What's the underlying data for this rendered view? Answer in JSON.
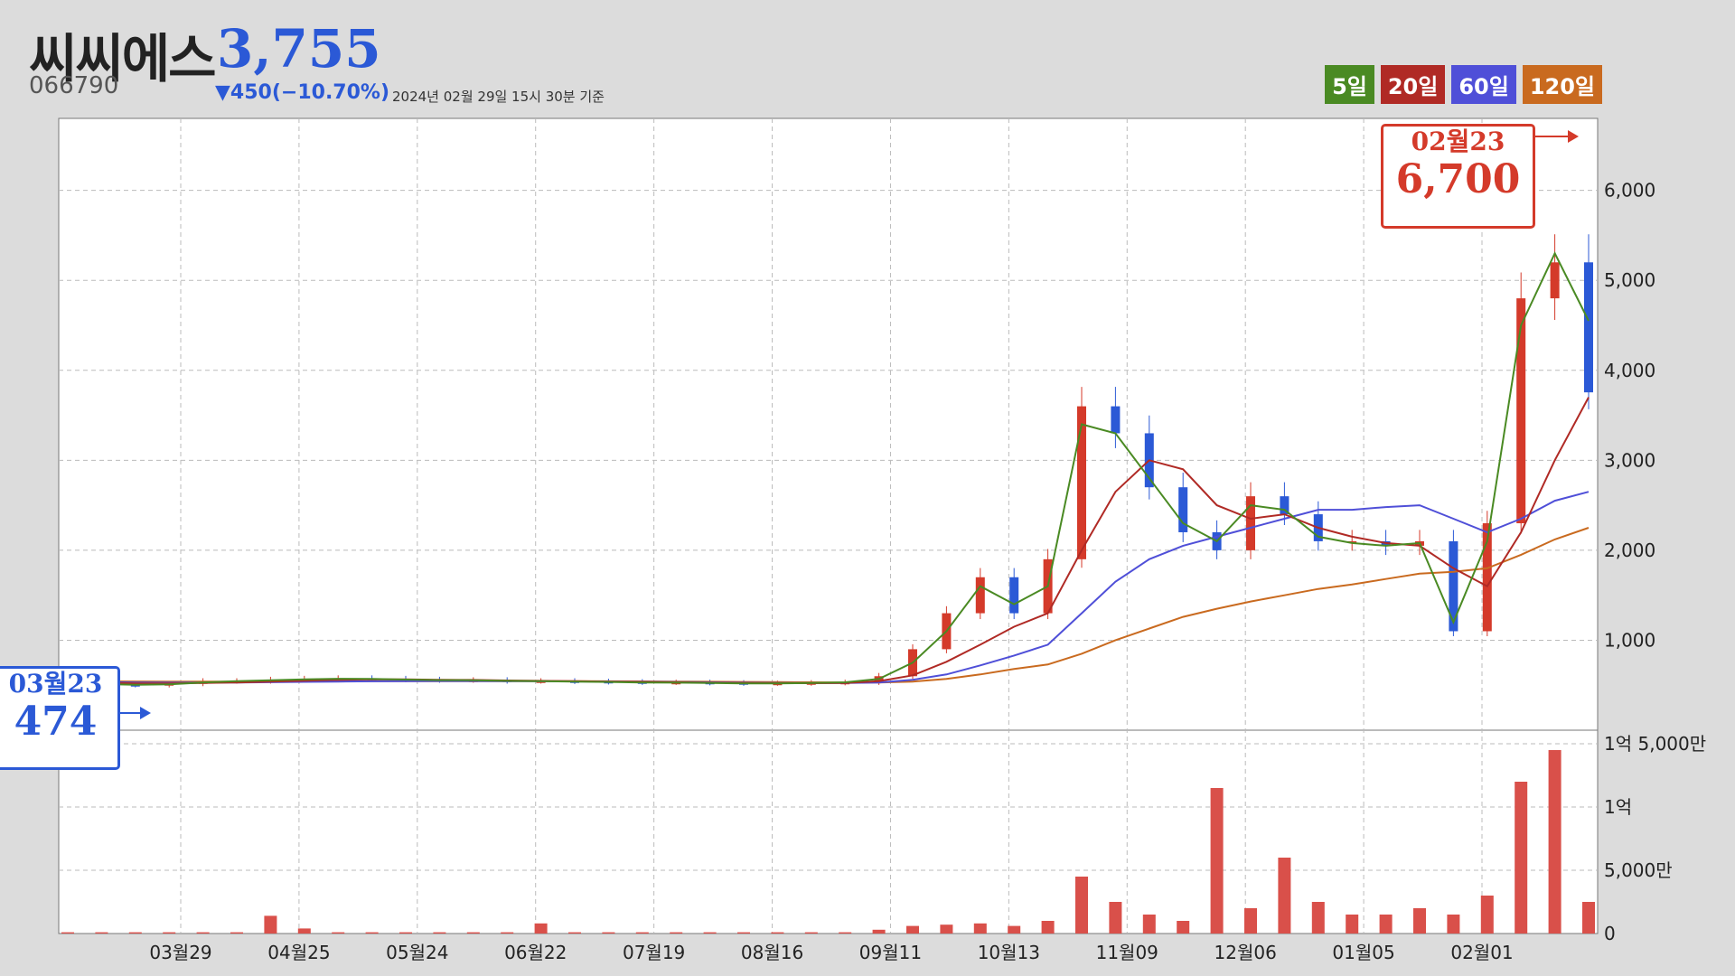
{
  "stock": {
    "name": "씨씨에스",
    "price": "3,755",
    "code": "066790",
    "change": "▼450(−10.70%)",
    "asof": "2024년 02월 29일 15시 30분 기준"
  },
  "legend": [
    {
      "label": "5일",
      "color": "#4a8a23"
    },
    {
      "label": "20일",
      "color": "#b02a25"
    },
    {
      "label": "60일",
      "color": "#4f4fd8"
    },
    {
      "label": "120일",
      "color": "#c96a1f"
    }
  ],
  "colors": {
    "up": "#d43a2a",
    "down": "#2b59d6",
    "volume": "#d9504a"
  },
  "callouts": {
    "max": {
      "date": "02월23",
      "value": "6,700"
    },
    "min": {
      "date": "03월23",
      "value": "474"
    }
  },
  "chart_data": {
    "type": "candlestick+volume",
    "x_tick_labels": [
      "03월29",
      "04월25",
      "05월24",
      "06월22",
      "07월19",
      "08월16",
      "09월11",
      "10월13",
      "11월09",
      "12월06",
      "01월05",
      "02월01"
    ],
    "y_price_ticks": [
      1000,
      2000,
      3000,
      4000,
      5000,
      6000
    ],
    "y_price_tick_labels": [
      "1,000",
      "2,000",
      "3,000",
      "4,000",
      "5,000",
      "6,000"
    ],
    "ylim_price": [
      0,
      6800
    ],
    "y_volume_ticks": [
      0,
      50000000,
      100000000,
      150000000
    ],
    "y_volume_tick_labels": [
      "0",
      "5,000만",
      "1억",
      "1억 5,000만"
    ],
    "ylim_volume": [
      0,
      155000000
    ],
    "price_close_weekly": [
      520,
      505,
      500,
      515,
      545,
      545,
      560,
      570,
      575,
      570,
      560,
      555,
      555,
      545,
      545,
      540,
      535,
      530,
      530,
      525,
      520,
      520,
      525,
      530,
      600,
      900,
      1300,
      1700,
      1300,
      1900,
      3600,
      3300,
      2700,
      2200,
      2000,
      2600,
      2400,
      2100,
      2100,
      2050,
      2100,
      1100,
      2300,
      4800,
      5200,
      3755
    ],
    "ma_weekly": {
      "ma5": [
        520,
        512,
        505,
        510,
        530,
        545,
        555,
        565,
        572,
        570,
        562,
        556,
        555,
        548,
        545,
        540,
        536,
        530,
        528,
        525,
        520,
        520,
        524,
        532,
        570,
        750,
        1100,
        1600,
        1400,
        1600,
        3400,
        3300,
        2800,
        2300,
        2100,
        2500,
        2450,
        2150,
        2080,
        2050,
        2080,
        1200,
        2100,
        4500,
        5300,
        4550
      ],
      "ma20": [
        540,
        530,
        520,
        520,
        525,
        530,
        540,
        550,
        560,
        565,
        565,
        560,
        558,
        552,
        548,
        544,
        540,
        536,
        532,
        528,
        524,
        522,
        522,
        525,
        545,
        610,
        760,
        950,
        1150,
        1300,
        2000,
        2650,
        3000,
        2900,
        2500,
        2350,
        2400,
        2250,
        2150,
        2080,
        2050,
        1800,
        1600,
        2200,
        3000,
        3700
      ],
      "ma60": [
        540,
        535,
        530,
        528,
        528,
        530,
        533,
        537,
        540,
        543,
        545,
        546,
        546,
        545,
        544,
        542,
        540,
        538,
        535,
        532,
        528,
        525,
        523,
        524,
        530,
        560,
        620,
        720,
        830,
        950,
        1300,
        1650,
        1900,
        2050,
        2150,
        2250,
        2350,
        2450,
        2450,
        2480,
        2500,
        2350,
        2200,
        2350,
        2550,
        2650
      ],
      "ma120": [
        545,
        543,
        541,
        540,
        540,
        540,
        541,
        542,
        543,
        544,
        545,
        545,
        545,
        545,
        545,
        544,
        543,
        542,
        540,
        538,
        536,
        534,
        532,
        530,
        530,
        540,
        570,
        620,
        680,
        730,
        850,
        1000,
        1130,
        1260,
        1350,
        1430,
        1500,
        1570,
        1620,
        1680,
        1740,
        1760,
        1800,
        1950,
        2120,
        2250
      ]
    },
    "max": {
      "date": "02월23",
      "value": 6700
    },
    "min": {
      "date": "03월23",
      "value": 474
    },
    "volume_weekly": [
      1,
      1,
      1,
      1,
      1,
      1,
      14,
      4,
      1,
      1,
      1,
      1,
      1,
      1,
      8,
      1,
      1,
      1,
      1,
      1,
      1,
      1,
      1,
      1,
      3,
      6,
      7,
      8,
      6,
      10,
      45,
      25,
      15,
      10,
      115,
      20,
      60,
      25,
      15,
      15,
      20,
      15,
      30,
      120,
      145,
      25
    ],
    "volume_unit": "백만"
  }
}
